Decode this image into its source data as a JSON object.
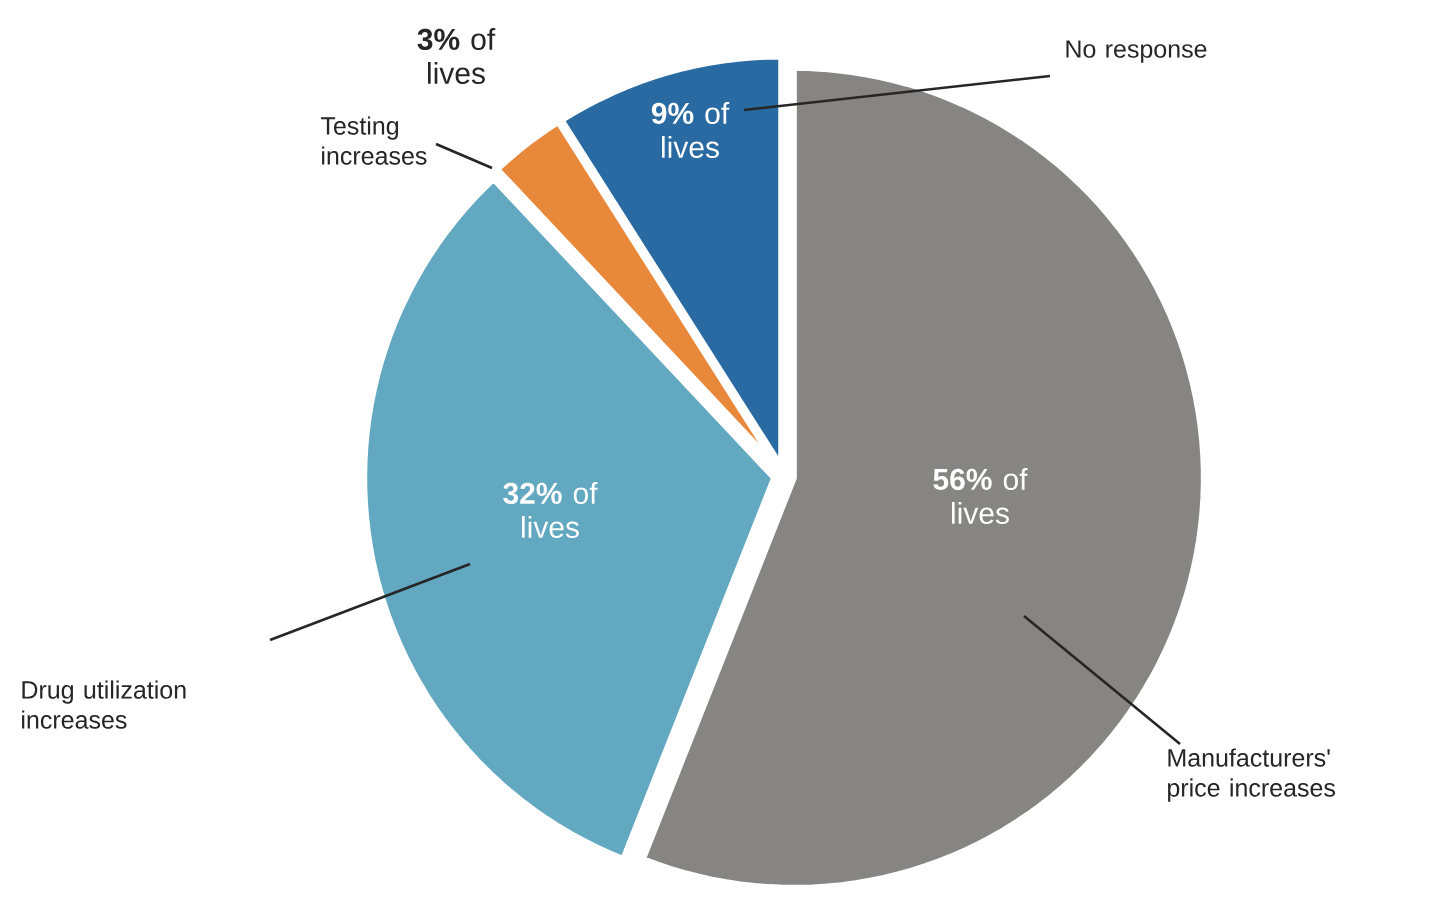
{
  "chart_data": {
    "type": "pie",
    "categories": [
      "Manufacturers' price increases",
      "Drug utilization increases",
      "Testing increases",
      "No response"
    ],
    "values": [
      56,
      32,
      3,
      9
    ],
    "colors": [
      "#878584",
      "#62a8c0",
      "#e8883a",
      "#2a6aa2"
    ],
    "value_labels": [
      "**56%** of lives",
      "**32%** of lives",
      "**3%** of lives",
      "**9%** of lives"
    ]
  }
}
